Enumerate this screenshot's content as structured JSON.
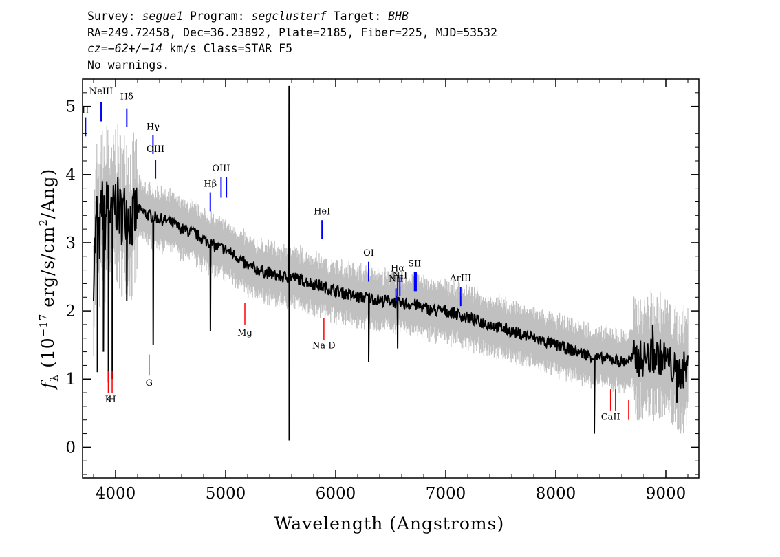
{
  "header": {
    "survey_label": "Survey: ",
    "survey": "segue1",
    "program_label": " Program: ",
    "program": "segclusterf",
    "target_label": " Target: ",
    "target": "BHB",
    "line2": "RA=249.72458, Dec=36.23892, Plate=2185, Fiber=225, MJD=53532",
    "cz_label": "cz",
    "cz_eq": "=",
    "cz_value": "−62+/−14",
    "cz_rest": " km/s Class=STAR F5",
    "line4": "No warnings."
  },
  "colors": {
    "flux": "#000000",
    "error_band": "#c0c0c0",
    "emission_line": "#0000ff",
    "absorption_line": "#ff0000"
  },
  "chart_data": {
    "type": "line",
    "xlabel": "Wavelength (Angstroms)",
    "ylabel": "f_λ (10^-17 erg/s/cm^2/Ang)",
    "xlim": [
      3700,
      9300
    ],
    "ylim": [
      -0.45,
      5.4
    ],
    "xticks": [
      4000,
      5000,
      6000,
      7000,
      8000,
      9000
    ],
    "yticks": [
      0,
      1,
      2,
      3,
      4,
      5
    ],
    "series": [
      {
        "x": [
          3800,
          3830,
          3850,
          3880,
          3900,
          3930,
          3960,
          4000,
          4050,
          4100,
          4150,
          4200,
          4300,
          4400,
          4500,
          4600,
          4700,
          4800,
          4900,
          5000,
          5100,
          5200,
          5300,
          5400,
          5500,
          5600,
          5700,
          5800,
          5900,
          6000,
          6100,
          6200,
          6300,
          6400,
          6500,
          6600,
          6700,
          6800,
          6900,
          7000,
          7100,
          7200,
          7300,
          7400,
          7500,
          7600,
          7700,
          7800,
          7900,
          8000,
          8100,
          8200,
          8300,
          8400,
          8500,
          8600,
          8700,
          8800,
          8900,
          9000,
          9100,
          9200
        ],
        "y": [
          2.6,
          3.4,
          3.0,
          3.6,
          3.2,
          3.7,
          3.3,
          3.6,
          3.4,
          3.5,
          3.3,
          3.5,
          3.4,
          3.35,
          3.3,
          3.2,
          3.15,
          3.05,
          2.95,
          2.9,
          2.8,
          2.65,
          2.6,
          2.55,
          2.5,
          2.5,
          2.45,
          2.4,
          2.35,
          2.3,
          2.25,
          2.2,
          2.2,
          2.15,
          2.15,
          2.1,
          2.1,
          2.05,
          2.0,
          2.0,
          1.95,
          1.9,
          1.85,
          1.8,
          1.75,
          1.7,
          1.65,
          1.6,
          1.55,
          1.5,
          1.45,
          1.4,
          1.35,
          1.3,
          1.3,
          1.25,
          1.3,
          1.3,
          1.35,
          1.3,
          1.1,
          1.15
        ]
      }
    ],
    "spikes": [
      {
        "x": 3835,
        "y": 1.1
      },
      {
        "x": 3890,
        "y": 1.4
      },
      {
        "x": 3935,
        "y": 0.95
      },
      {
        "x": 3970,
        "y": 1.0
      },
      {
        "x": 4102,
        "y": 2.15
      },
      {
        "x": 4342,
        "y": 1.5
      },
      {
        "x": 4862,
        "y": 1.7
      },
      {
        "x": 5577,
        "y": 5.3
      },
      {
        "x": 5578,
        "y": 0.1
      },
      {
        "x": 6300,
        "y": 1.25
      },
      {
        "x": 6563,
        "y": 1.45
      },
      {
        "x": 8350,
        "y": 0.2
      },
      {
        "x": 9100,
        "y": 0.65
      },
      {
        "x": 8880,
        "y": 1.8
      }
    ],
    "emission_lines": [
      {
        "label": "NeIII",
        "wavelength": 3869,
        "y_lo": 4.78,
        "y_hi": 5.06,
        "label_y": 5.18
      },
      {
        "label": "Hδ",
        "wavelength": 4102,
        "y_lo": 4.7,
        "y_hi": 4.97,
        "label_y": 5.1
      },
      {
        "label": "Hγ",
        "wavelength": 4340,
        "y_lo": 4.3,
        "y_hi": 4.58,
        "label_y": 4.66
      },
      {
        "label": "OIII",
        "wavelength": 4363,
        "y_lo": 3.94,
        "y_hi": 4.22,
        "label_y": 4.33
      },
      {
        "label": "Hβ",
        "wavelength": 4861,
        "y_lo": 3.46,
        "y_hi": 3.74,
        "label_y": 3.82
      },
      {
        "label": "OIII",
        "wavelength": 4959,
        "y_lo": 3.66,
        "y_hi": 3.96,
        "label_y": 4.05
      },
      {
        "label": "",
        "wavelength": 5007,
        "y_lo": 3.66,
        "y_hi": 3.96,
        "label_y": 4.05
      },
      {
        "label": "HeI",
        "wavelength": 5876,
        "y_lo": 3.05,
        "y_hi": 3.33,
        "label_y": 3.42
      },
      {
        "label": "OI",
        "wavelength": 6300,
        "y_lo": 2.43,
        "y_hi": 2.72,
        "label_y": 2.81
      },
      {
        "label": "NII",
        "wavelength": 6548,
        "y_lo": 2.15,
        "y_hi": 2.33,
        "label_y": 2.43
      },
      {
        "label": "Hα",
        "wavelength": 6563,
        "y_lo": 2.22,
        "y_hi": 2.5,
        "label_y": 2.58
      },
      {
        "label": "NII",
        "wavelength": 6583,
        "y_lo": 2.22,
        "y_hi": 2.5,
        "label_y": 2.48
      },
      {
        "label": "SII",
        "wavelength": 6717,
        "y_lo": 2.29,
        "y_hi": 2.57,
        "label_y": 2.65
      },
      {
        "label": "",
        "wavelength": 6731,
        "y_lo": 2.29,
        "y_hi": 2.57,
        "label_y": 2.65
      },
      {
        "label": "ArIII",
        "wavelength": 7136,
        "y_lo": 2.07,
        "y_hi": 2.35,
        "label_y": 2.44
      },
      {
        "label": "II",
        "wavelength": 3727,
        "y_lo": 4.56,
        "y_hi": 4.84,
        "label_y": 4.9
      }
    ],
    "absorption_lines": [
      {
        "label": "K",
        "wavelength": 3934,
        "y_lo": 0.8,
        "y_hi": 1.12,
        "label_y": 0.66
      },
      {
        "label": "H",
        "wavelength": 3969,
        "y_lo": 0.8,
        "y_hi": 1.12,
        "label_y": 0.66
      },
      {
        "label": "G",
        "wavelength": 4305,
        "y_lo": 1.05,
        "y_hi": 1.36,
        "label_y": 0.9
      },
      {
        "label": "Mg",
        "wavelength": 5175,
        "y_lo": 1.8,
        "y_hi": 2.12,
        "label_y": 1.64
      },
      {
        "label": "Na D",
        "wavelength": 5893,
        "y_lo": 1.57,
        "y_hi": 1.89,
        "label_y": 1.45
      },
      {
        "label": "CaII",
        "wavelength": 8498,
        "y_lo": 0.54,
        "y_hi": 0.85,
        "label_y": 0.4
      },
      {
        "label": "",
        "wavelength": 8542,
        "y_lo": 0.54,
        "y_hi": 0.85,
        "label_y": 0.4
      },
      {
        "label": "",
        "wavelength": 8662,
        "y_lo": 0.4,
        "y_hi": 0.7,
        "label_y": 0.4
      }
    ]
  }
}
